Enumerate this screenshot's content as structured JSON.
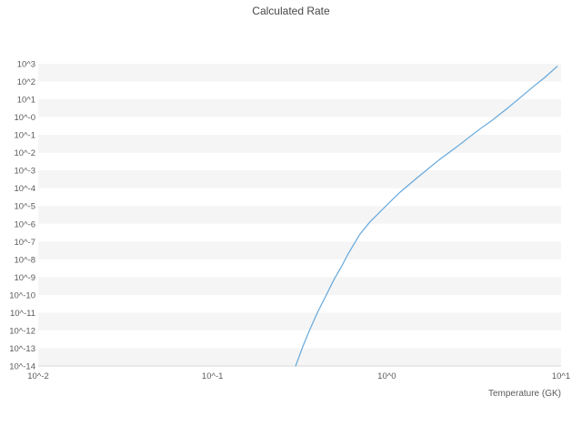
{
  "chart_data": {
    "type": "line",
    "title": "Calculated Rate",
    "xlabel": "Temperature (GK)",
    "ylabel": "",
    "x_scale": "log",
    "y_scale": "log",
    "xlim": [
      0.01,
      10
    ],
    "ylim": [
      1e-14,
      1000
    ],
    "grid": "horizontal-stripes",
    "legend": "none",
    "x_ticks": [
      {
        "value": 0.01,
        "label": "10^-2"
      },
      {
        "value": 0.1,
        "label": "10^-1"
      },
      {
        "value": 1.0,
        "label": "10^0"
      },
      {
        "value": 10.0,
        "label": "10^1"
      }
    ],
    "y_ticks": [
      {
        "exp": 3,
        "label": "10^3"
      },
      {
        "exp": 2,
        "label": "10^2"
      },
      {
        "exp": 1,
        "label": "10^1"
      },
      {
        "exp": 0,
        "label": "10^-0"
      },
      {
        "exp": -1,
        "label": "10^-1"
      },
      {
        "exp": -2,
        "label": "10^-2"
      },
      {
        "exp": -3,
        "label": "10^-3"
      },
      {
        "exp": -4,
        "label": "10^-4"
      },
      {
        "exp": -5,
        "label": "10^-5"
      },
      {
        "exp": -6,
        "label": "10^-6"
      },
      {
        "exp": -7,
        "label": "10^-7"
      },
      {
        "exp": -8,
        "label": "10^-8"
      },
      {
        "exp": -9,
        "label": "10^-9"
      },
      {
        "exp": -10,
        "label": "10^-10"
      },
      {
        "exp": -11,
        "label": "10^-11"
      },
      {
        "exp": -12,
        "label": "10^-12"
      },
      {
        "exp": -13,
        "label": "10^-13"
      },
      {
        "exp": -14,
        "label": "10^-14"
      }
    ],
    "series": [
      {
        "name": "calculated-rate",
        "color": "#64a8dc",
        "x": [
          0.3,
          0.33,
          0.36,
          0.4,
          0.45,
          0.5,
          0.55,
          0.6,
          0.7,
          0.8,
          0.9,
          1.0,
          1.2,
          1.5,
          2.0,
          2.5,
          3.0,
          3.5,
          4.0,
          5.0,
          6.0,
          7.0,
          8.0,
          9.5
        ],
        "log_y": [
          -14.0,
          -12.9,
          -12.0,
          -11.0,
          -10.0,
          -9.1,
          -8.4,
          -7.7,
          -6.6,
          -5.9,
          -5.4,
          -4.95,
          -4.2,
          -3.4,
          -2.4,
          -1.7,
          -1.1,
          -0.6,
          -0.2,
          0.55,
          1.2,
          1.75,
          2.2,
          2.85
        ]
      }
    ],
    "colors": {
      "stripe": "#f5f5f5",
      "background": "#ffffff",
      "tick_text": "#5a5a5a",
      "title_text": "#474747",
      "axis_line": "#d9d9d9"
    }
  }
}
